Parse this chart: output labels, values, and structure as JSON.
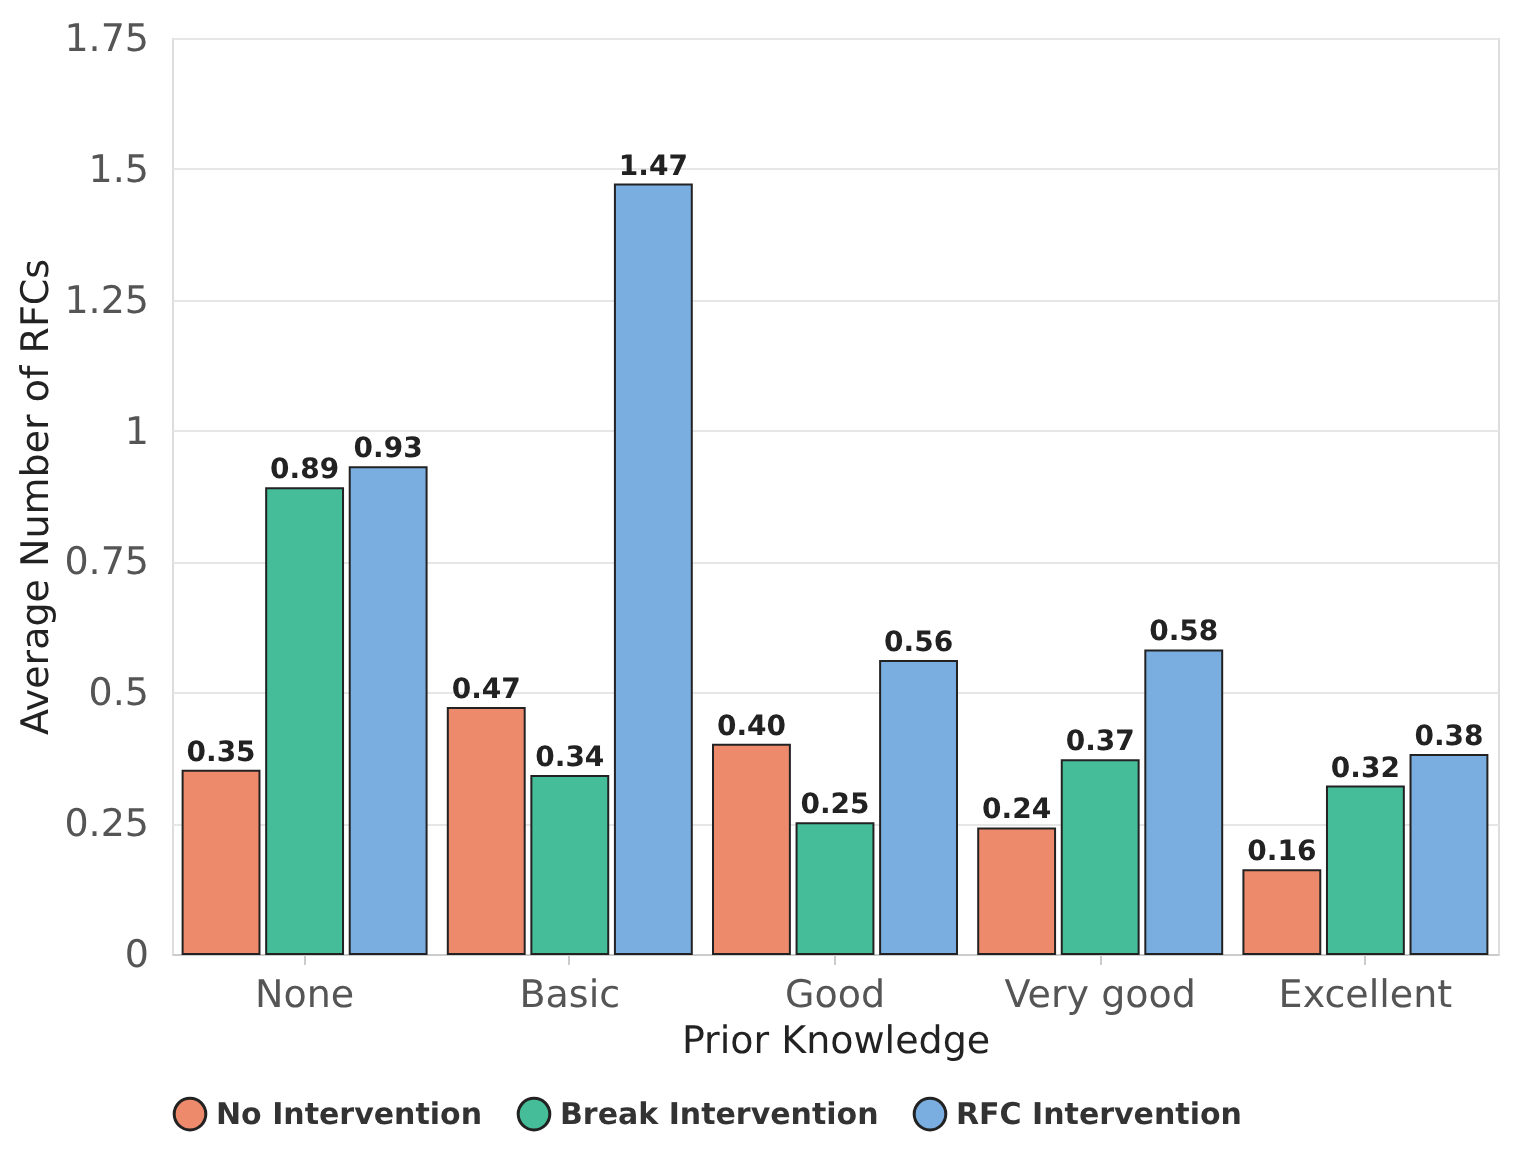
{
  "chart_data": {
    "type": "bar",
    "xlabel": "Prior Knowledge",
    "ylabel": "Average Number of RFCs",
    "categories": [
      "None",
      "Basic",
      "Good",
      "Very good",
      "Excellent"
    ],
    "series": [
      {
        "name": "No Intervention",
        "color": "#ee8a6c",
        "values": [
          0.35,
          0.47,
          0.4,
          0.24,
          0.16
        ],
        "value_labels": [
          "0.35",
          "0.47",
          "0.40",
          "0.24",
          "0.16"
        ]
      },
      {
        "name": "Break Intervention",
        "color": "#44bd98",
        "values": [
          0.89,
          0.34,
          0.25,
          0.37,
          0.32
        ],
        "value_labels": [
          "0.89",
          "0.34",
          "0.25",
          "0.37",
          "0.32"
        ]
      },
      {
        "name": "RFC Intervention",
        "color": "#7aaee0",
        "values": [
          0.93,
          1.47,
          0.56,
          0.58,
          0.38
        ],
        "value_labels": [
          "0.93",
          "1.47",
          "0.56",
          "0.58",
          "0.38"
        ]
      }
    ],
    "ylim": [
      0,
      1.75
    ],
    "yticks": [
      0,
      0.25,
      0.5,
      0.75,
      1,
      1.25,
      1.5,
      1.75
    ],
    "grid": "y",
    "legend": "bottom"
  }
}
